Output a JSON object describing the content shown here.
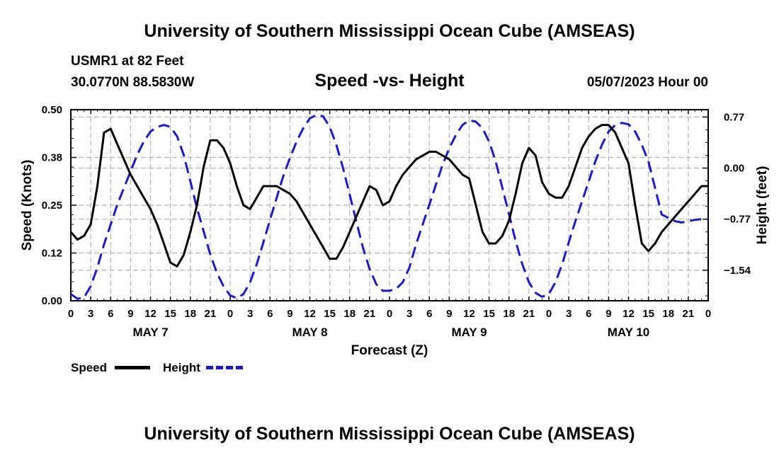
{
  "header": {
    "title_top": "University of Southern Mississippi Ocean Cube (AMSEAS)",
    "station": "USMR1 at 82 Feet",
    "coords": "30.0770N  88.5830W",
    "date": "05/07/2023 Hour 00",
    "title_bottom": "University of Southern Mississippi Ocean Cube (AMSEAS)"
  },
  "legend": {
    "speed_label": "Speed",
    "height_label": "Height"
  },
  "colors": {
    "speed": "#000000",
    "height": "#1a1acc",
    "grid": "#b4b4b4"
  },
  "chart_data": {
    "type": "line",
    "title": "Speed -vs- Height",
    "xlabel": "Forecast (Z)",
    "ylabel": "Speed (Knots)",
    "y2label": "Height (feet)",
    "xlim": [
      0,
      96
    ],
    "ylim": [
      0,
      0.5
    ],
    "y2lim": [
      -2.0,
      0.88
    ],
    "yticks": [
      "0.00",
      "0.12",
      "0.25",
      "0.38",
      "0.50"
    ],
    "yticks_values": [
      0,
      0.125,
      0.25,
      0.375,
      0.5
    ],
    "y2ticks": [
      "0.77",
      "0.00",
      "−0.77",
      "−1.54"
    ],
    "y2ticks_values": [
      0.77,
      0.0,
      -0.77,
      -1.54
    ],
    "xticks": [
      "0",
      "3",
      "6",
      "9",
      "12",
      "15",
      "18",
      "21",
      "0",
      "3",
      "6",
      "9",
      "12",
      "15",
      "18",
      "21",
      "0",
      "3",
      "6",
      "9",
      "12",
      "15",
      "18",
      "21",
      "0",
      "3",
      "6",
      "9",
      "12",
      "15",
      "18",
      "21",
      "0"
    ],
    "day_labels": [
      {
        "label": "MAY 7",
        "hour": 12
      },
      {
        "label": "MAY 8",
        "hour": 36
      },
      {
        "label": "MAY 9",
        "hour": 60
      },
      {
        "label": "MAY 10",
        "hour": 84
      }
    ],
    "grid": true,
    "series": [
      {
        "name": "Speed",
        "style": "solid",
        "x": [
          0,
          1,
          2,
          3,
          4,
          5,
          6,
          7,
          8,
          9,
          10,
          11,
          12,
          13,
          14,
          15,
          16,
          17,
          18,
          19,
          20,
          21,
          22,
          23,
          24,
          25,
          26,
          27,
          28,
          29,
          30,
          31,
          32,
          33,
          34,
          35,
          36,
          37,
          38,
          39,
          40,
          41,
          42,
          43,
          44,
          45,
          46,
          47,
          48,
          49,
          50,
          51,
          52,
          53,
          54,
          55,
          56,
          57,
          58,
          59,
          60,
          61,
          62,
          63,
          64,
          65,
          66,
          67,
          68,
          69,
          70,
          71,
          72,
          73,
          74,
          75,
          76,
          77,
          78,
          79,
          80,
          81,
          82,
          83,
          84,
          85,
          86,
          87,
          88,
          89,
          90,
          91,
          92,
          93,
          94,
          95,
          96
        ],
        "values": [
          0.18,
          0.16,
          0.17,
          0.2,
          0.3,
          0.44,
          0.45,
          0.41,
          0.37,
          0.33,
          0.3,
          0.27,
          0.24,
          0.2,
          0.15,
          0.1,
          0.09,
          0.12,
          0.18,
          0.25,
          0.35,
          0.42,
          0.42,
          0.4,
          0.36,
          0.3,
          0.25,
          0.24,
          0.27,
          0.3,
          0.3,
          0.3,
          0.29,
          0.28,
          0.26,
          0.23,
          0.2,
          0.17,
          0.14,
          0.11,
          0.11,
          0.14,
          0.18,
          0.22,
          0.26,
          0.3,
          0.29,
          0.25,
          0.26,
          0.3,
          0.33,
          0.35,
          0.37,
          0.38,
          0.39,
          0.39,
          0.38,
          0.37,
          0.35,
          0.33,
          0.32,
          0.25,
          0.18,
          0.15,
          0.15,
          0.17,
          0.21,
          0.28,
          0.36,
          0.4,
          0.38,
          0.31,
          0.28,
          0.27,
          0.27,
          0.3,
          0.35,
          0.4,
          0.43,
          0.45,
          0.46,
          0.46,
          0.44,
          0.4,
          0.36,
          0.25,
          0.15,
          0.13,
          0.15,
          0.18,
          0.2,
          0.22,
          0.24,
          0.26,
          0.28,
          0.3,
          0.3
        ]
      },
      {
        "name": "Height",
        "style": "dashed",
        "x": [
          0,
          1,
          2,
          3,
          4,
          5,
          6,
          7,
          8,
          9,
          10,
          11,
          12,
          13,
          14,
          15,
          16,
          17,
          18,
          19,
          20,
          21,
          22,
          23,
          24,
          25,
          26,
          27,
          28,
          29,
          30,
          31,
          32,
          33,
          34,
          35,
          36,
          37,
          38,
          39,
          40,
          41,
          42,
          43,
          44,
          45,
          46,
          47,
          48,
          49,
          50,
          51,
          52,
          53,
          54,
          55,
          56,
          57,
          58,
          59,
          60,
          61,
          62,
          63,
          64,
          65,
          66,
          67,
          68,
          69,
          70,
          71,
          72,
          73,
          74,
          75,
          76,
          77,
          78,
          79,
          80,
          81,
          82,
          83,
          84,
          85,
          86,
          87,
          88,
          89,
          90,
          91,
          92,
          93,
          94,
          95,
          96
        ],
        "values": [
          -1.9,
          -1.97,
          -1.95,
          -1.78,
          -1.5,
          -1.15,
          -0.85,
          -0.55,
          -0.3,
          -0.05,
          0.2,
          0.4,
          0.55,
          0.62,
          0.65,
          0.62,
          0.48,
          0.2,
          -0.2,
          -0.6,
          -0.95,
          -1.3,
          -1.58,
          -1.78,
          -1.92,
          -1.96,
          -1.9,
          -1.72,
          -1.45,
          -1.12,
          -0.78,
          -0.45,
          -0.12,
          0.15,
          0.4,
          0.6,
          0.75,
          0.8,
          0.78,
          0.62,
          0.35,
          0.0,
          -0.4,
          -0.8,
          -1.2,
          -1.52,
          -1.75,
          -1.85,
          -1.85,
          -1.82,
          -1.72,
          -1.5,
          -1.15,
          -0.85,
          -0.55,
          -0.25,
          0.05,
          0.3,
          0.5,
          0.65,
          0.72,
          0.7,
          0.6,
          0.4,
          0.1,
          -0.3,
          -0.7,
          -1.1,
          -1.45,
          -1.72,
          -1.88,
          -1.94,
          -1.9,
          -1.72,
          -1.45,
          -1.12,
          -0.8,
          -0.5,
          -0.2,
          0.1,
          0.35,
          0.55,
          0.65,
          0.68,
          0.66,
          0.55,
          0.35,
          0.1,
          -0.3,
          -0.7,
          -0.75,
          -0.8,
          -0.82,
          -0.8,
          -0.78,
          -0.77,
          -0.77
        ]
      }
    ]
  }
}
